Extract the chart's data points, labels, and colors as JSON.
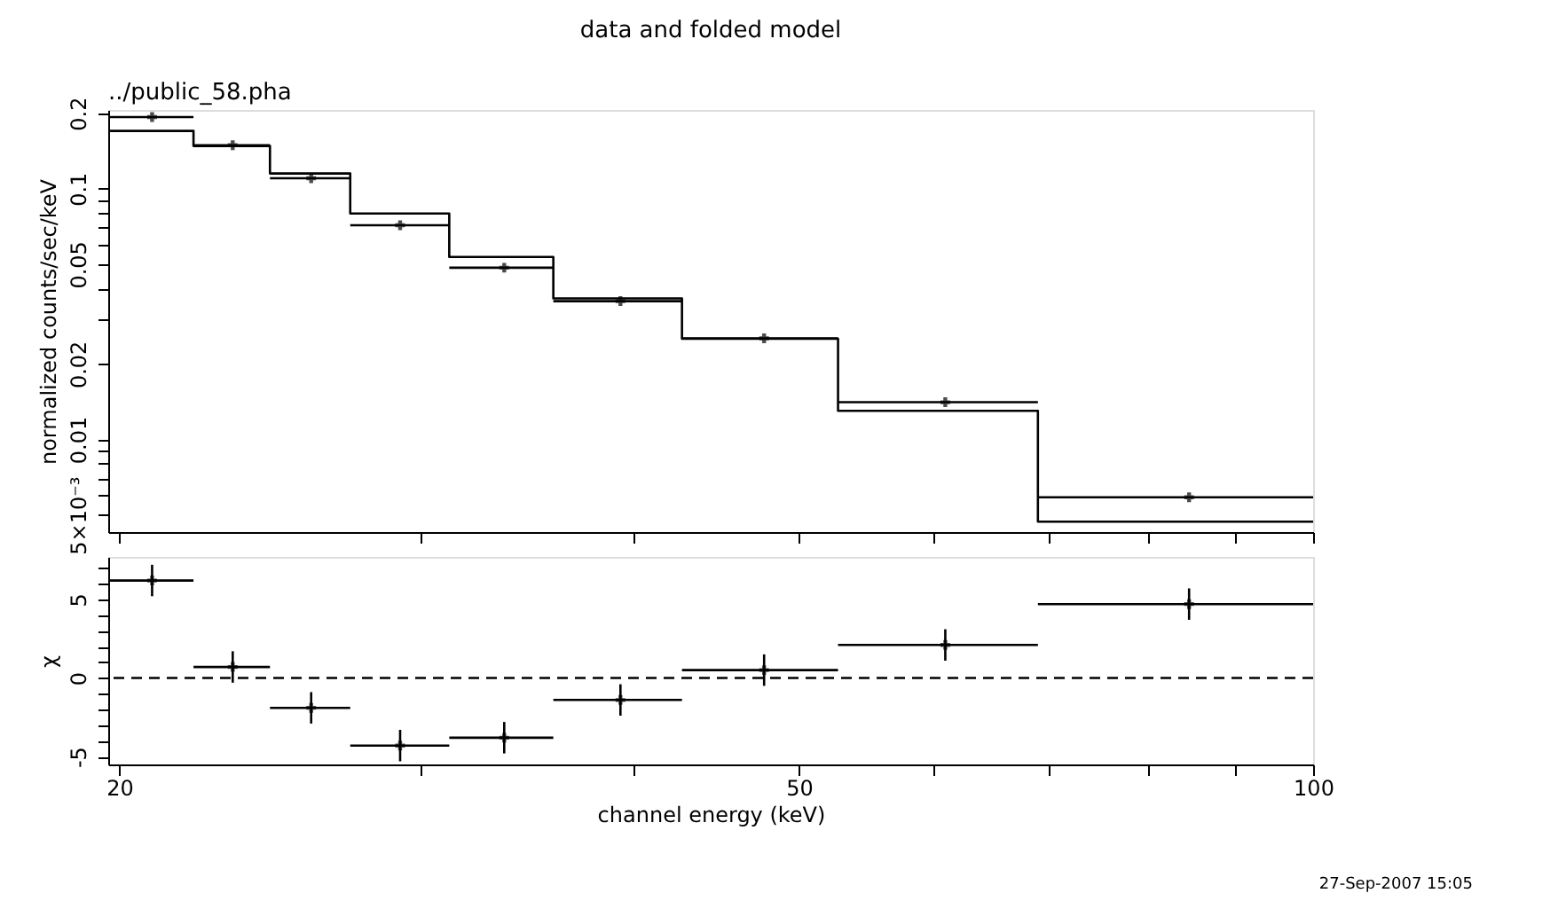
{
  "chart_data": [
    {
      "type": "scatter",
      "title": "data and folded model",
      "subtitle": "../public_58.pha",
      "ylabel": "normalized counts/sec/keV",
      "x": [
        20.9,
        23.3,
        25.9,
        29.2,
        33.6,
        39.3,
        47.7,
        60.9,
        84.6
      ],
      "series": [
        {
          "type": "scatter",
          "marker": "cross",
          "color": "#000000",
          "values": [
            0.193,
            0.149,
            0.11,
            0.0715,
            0.0484,
            0.0356,
            0.0253,
            0.01407,
            0.00588
          ],
          "xerrors": [
            [
              19.7,
              22.1
            ],
            [
              22.1,
              24.5
            ],
            [
              24.5,
              27.3
            ],
            [
              27.3,
              31.2
            ],
            [
              31.2,
              35.9
            ],
            [
              35.9,
              42.7
            ],
            [
              42.7,
              52.7
            ],
            [
              52.7,
              69.0
            ],
            [
              69.0,
              100
            ]
          ]
        },
        {
          "type": "step",
          "marker": "none",
          "color": "#000000",
          "x": [
            19.7,
            22.1,
            24.5,
            27.3,
            31.2,
            35.9,
            42.7,
            52.7,
            69.0,
            100
          ],
          "values": [
            0.17,
            0.148,
            0.115,
            0.0796,
            0.0534,
            0.0365,
            0.0252,
            0.013,
            0.0047,
            0.0047
          ]
        }
      ],
      "xlim": [
        19.7,
        100
      ],
      "xticks": [
        {
          "value": 20,
          "label": null
        },
        {
          "value": 30,
          "label": null
        },
        {
          "value": 40,
          "label": null
        },
        {
          "value": 50,
          "label": null
        },
        {
          "value": 60,
          "label": null
        },
        {
          "value": 70,
          "label": null
        },
        {
          "value": 80,
          "label": null
        },
        {
          "value": 90,
          "label": null
        },
        {
          "value": 100,
          "label": null
        }
      ],
      "ylim": [
        0.00427,
        0.206
      ],
      "yticks": [
        {
          "value": 0.005,
          "label": "5×10⁻³"
        },
        {
          "value": 0.006,
          "label": null
        },
        {
          "value": 0.007,
          "label": null
        },
        {
          "value": 0.008,
          "label": null
        },
        {
          "value": 0.009,
          "label": null
        },
        0.01,
        0.02,
        {
          "value": 0.03,
          "label": null
        },
        {
          "value": 0.04,
          "label": null
        },
        0.05,
        {
          "value": 0.06,
          "label": null
        },
        {
          "value": 0.07,
          "label": null
        },
        {
          "value": 0.08,
          "label": null
        },
        {
          "value": 0.09,
          "label": null
        },
        0.1,
        0.2
      ],
      "log": "xy",
      "tick_labels": "y",
      "grid": false
    },
    {
      "type": "scatter",
      "xlabel": "channel energy (keV)",
      "ylabel": "χ",
      "x": [
        20.9,
        23.3,
        25.9,
        29.2,
        33.6,
        39.3,
        47.7,
        60.9,
        84.6
      ],
      "values": [
        6.2,
        0.7,
        -1.9,
        -4.3,
        -3.8,
        -1.4,
        0.5,
        2.1,
        4.7
      ],
      "errors": [
        1,
        1,
        1,
        1,
        1,
        1,
        1,
        1,
        1
      ],
      "xerrors": [
        [
          19.7,
          22.1
        ],
        [
          22.1,
          24.5
        ],
        [
          24.5,
          27.3
        ],
        [
          27.3,
          31.2
        ],
        [
          31.2,
          35.9
        ],
        [
          35.9,
          42.7
        ],
        [
          42.7,
          52.7
        ],
        [
          52.7,
          69.0
        ],
        [
          69.0,
          100
        ]
      ],
      "color": "#000000",
      "xlim": [
        19.7,
        100
      ],
      "xticks": [
        20,
        {
          "value": 30,
          "label": null
        },
        {
          "value": 40,
          "label": null
        },
        50,
        {
          "value": 60,
          "label": null
        },
        {
          "value": 70,
          "label": null
        },
        {
          "value": 80,
          "label": null
        },
        {
          "value": 90,
          "label": null
        },
        100
      ],
      "ylim": [
        -5.5,
        7.7
      ],
      "yticks": [
        -5,
        {
          "value": -4,
          "label": null
        },
        {
          "value": -3,
          "label": null
        },
        {
          "value": -2,
          "label": null
        },
        {
          "value": -1,
          "label": null
        },
        0,
        {
          "value": 1,
          "label": null
        },
        {
          "value": 2,
          "label": null
        },
        {
          "value": 3,
          "label": null
        },
        {
          "value": 4,
          "label": null
        },
        5,
        {
          "value": 6,
          "label": null
        },
        {
          "value": 7,
          "label": null
        }
      ],
      "log": "x",
      "marker": "cross",
      "grid": false,
      "ref_lines": [
        {
          "axis": "y",
          "value": 0,
          "line_style": "dashed"
        }
      ],
      "annotations": [
        "27-Sep-2007 15:05"
      ]
    }
  ]
}
